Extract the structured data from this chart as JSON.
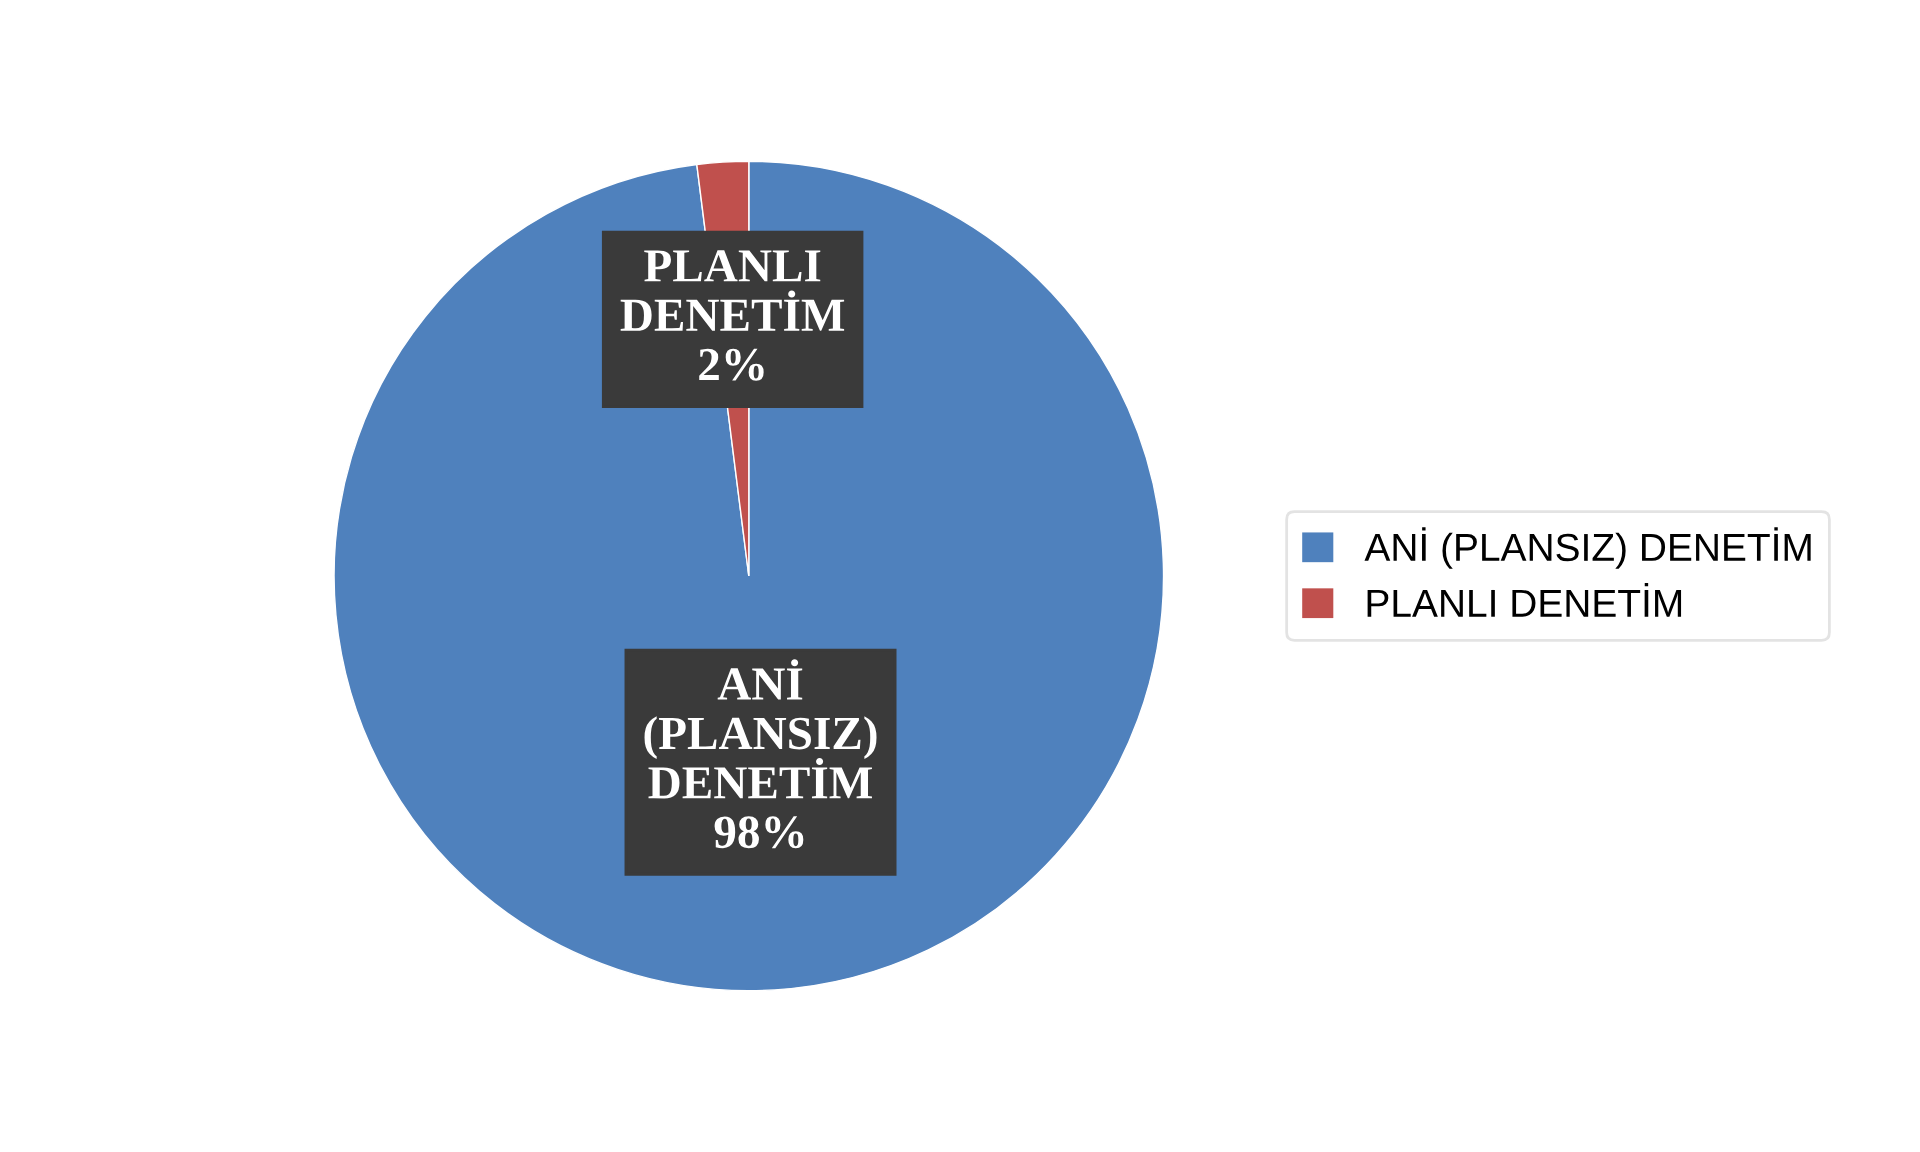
{
  "chart_data": {
    "type": "pie",
    "categories": [
      "ANİ (PLANSIZ) DENETİM",
      "PLANLI DENETİM"
    ],
    "values": [
      98,
      2
    ],
    "colors": [
      "#4f81bd",
      "#c0504d"
    ],
    "value_labels": [
      "ANİ\n(PLANSIZ)\nDENETİM\n98%",
      "PLANLI\nDENETİM\n2%"
    ],
    "legend": "right"
  }
}
